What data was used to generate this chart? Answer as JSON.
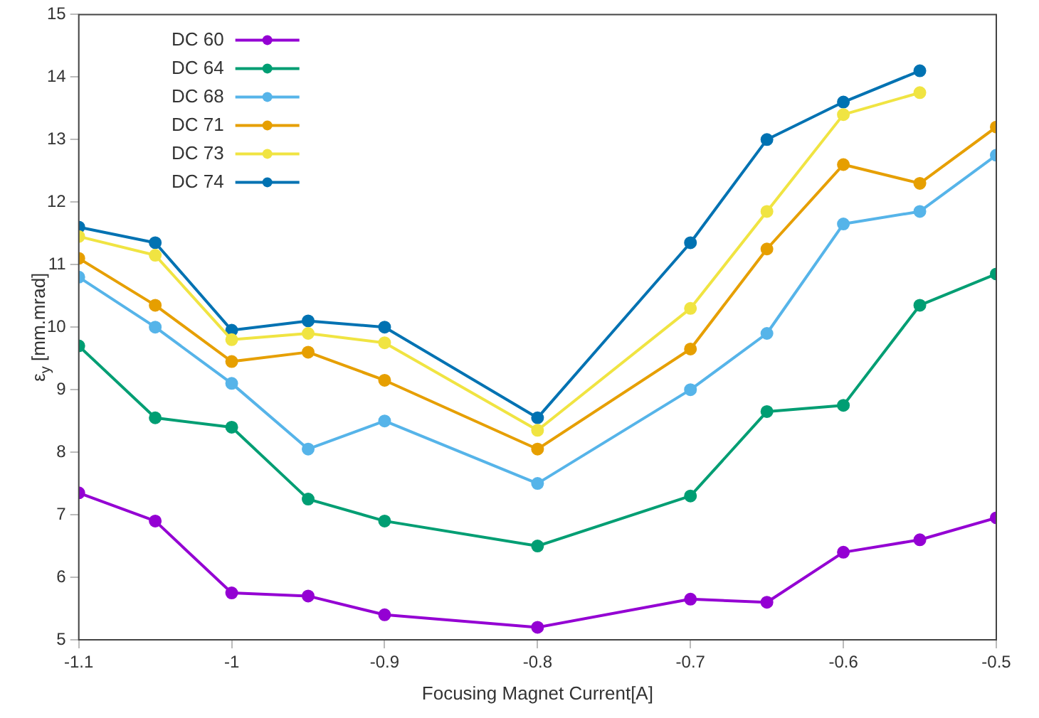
{
  "chart_data": {
    "type": "line",
    "xlabel": "Focusing Magnet Current[A]",
    "ylabel": "ε$_{y}$ [mm.mrad]",
    "x": [
      -1.1,
      -1.05,
      -1,
      -0.95,
      -0.9,
      -0.8,
      -0.7,
      -0.65,
      -0.6,
      -0.55,
      -0.5
    ],
    "series": [
      {
        "name": "DC 60",
        "color": "#9400d3",
        "values": [
          7.35,
          6.9,
          5.75,
          5.7,
          5.4,
          5.2,
          5.65,
          5.6,
          6.4,
          6.6,
          6.95
        ]
      },
      {
        "name": "DC 64",
        "color": "#009e73",
        "values": [
          9.7,
          8.55,
          8.4,
          7.25,
          6.9,
          6.5,
          7.3,
          8.65,
          8.75,
          10.35,
          10.85
        ]
      },
      {
        "name": "DC 68",
        "color": "#56b4e9",
        "values": [
          10.8,
          10.0,
          9.1,
          8.05,
          8.5,
          7.5,
          9.0,
          9.9,
          11.65,
          11.85,
          12.75
        ]
      },
      {
        "name": "DC 71",
        "color": "#e69f00",
        "values": [
          11.1,
          10.35,
          9.45,
          9.6,
          9.15,
          8.05,
          9.65,
          11.25,
          12.6,
          12.3,
          13.2
        ]
      },
      {
        "name": "DC 73",
        "color": "#f0e442",
        "values": [
          11.45,
          11.15,
          9.8,
          9.9,
          9.75,
          8.35,
          10.3,
          11.85,
          13.4,
          13.75,
          null
        ]
      },
      {
        "name": "DC 74",
        "color": "#0072b2",
        "values": [
          11.6,
          11.35,
          9.95,
          10.1,
          10.0,
          8.55,
          11.35,
          13.0,
          13.6,
          14.1,
          null
        ]
      }
    ],
    "xlim": [
      -1.1,
      -0.5
    ],
    "xticks": [
      -1.1,
      -1,
      -0.9,
      -0.8,
      -0.7,
      -0.6,
      -0.5
    ],
    "ylim": [
      5,
      15
    ],
    "yticks": [
      5,
      6,
      7,
      8,
      9,
      10,
      11,
      12,
      13,
      14,
      15
    ],
    "grid": false,
    "legend": "top left",
    "marker": "circle",
    "line_style": "solid"
  }
}
